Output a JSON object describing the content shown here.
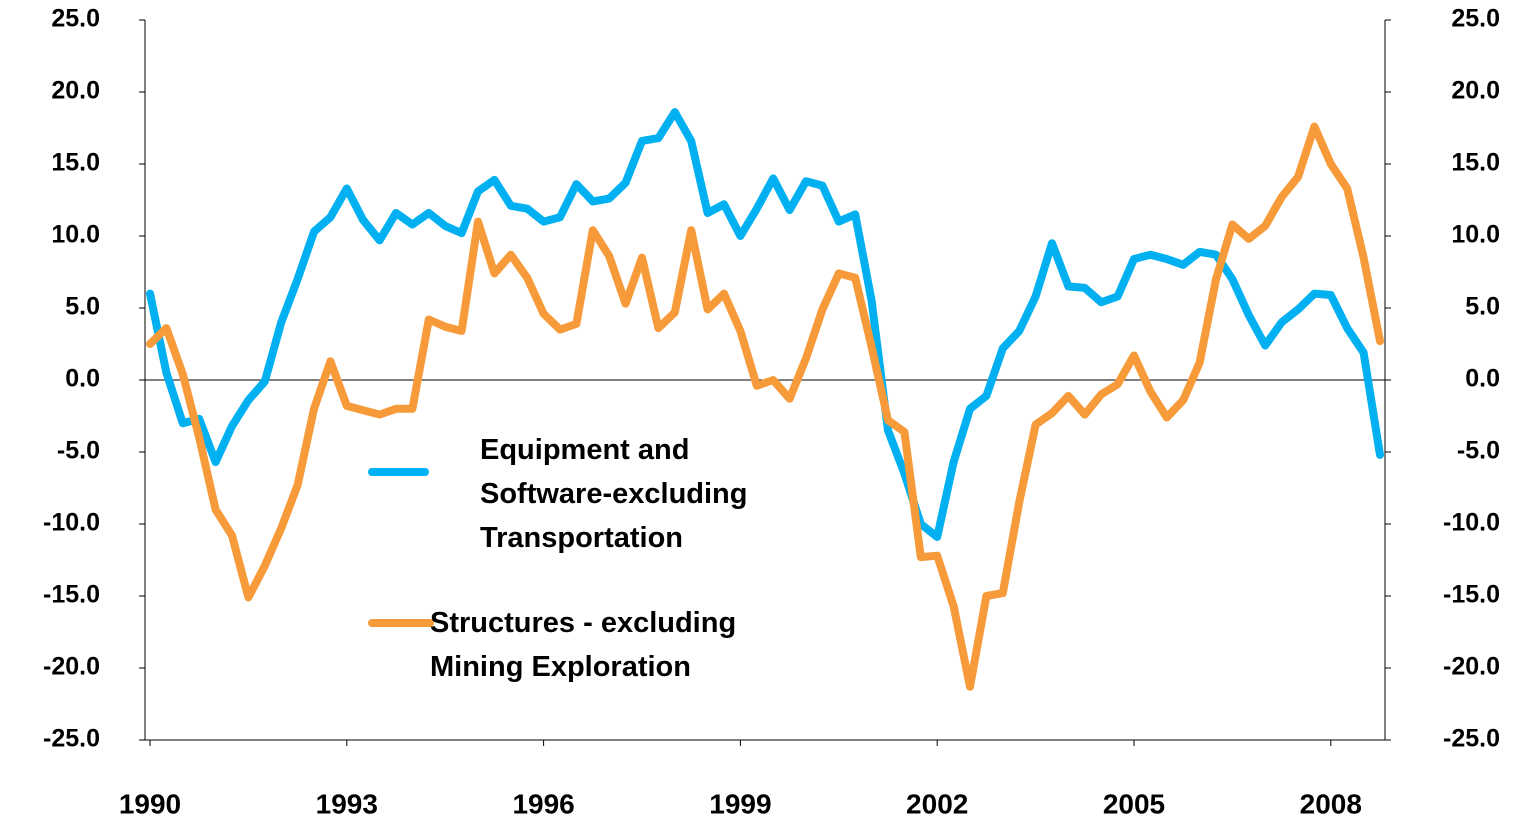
{
  "chart_data": {
    "type": "line",
    "categories": [
      "1990",
      null,
      null,
      null,
      null,
      null,
      null,
      null,
      null,
      null,
      null,
      null,
      "1993",
      null,
      null,
      null,
      null,
      null,
      null,
      null,
      null,
      null,
      null,
      null,
      "1996",
      null,
      null,
      null,
      null,
      null,
      null,
      null,
      null,
      null,
      null,
      null,
      "1999",
      null,
      null,
      null,
      null,
      null,
      null,
      null,
      null,
      null,
      null,
      null,
      "2002",
      null,
      null,
      null,
      null,
      null,
      null,
      null,
      null,
      null,
      null,
      null,
      "2005",
      null,
      null,
      null,
      null,
      null,
      null,
      null,
      null,
      null,
      null,
      null,
      "2008",
      null,
      null,
      null
    ],
    "series": [
      {
        "name": "Equipment and Software-excluding Transportation",
        "color": "#00b0f0",
        "values": [
          6.0,
          0.5,
          -3.0,
          -2.7,
          -5.7,
          -3.2,
          -1.4,
          -0.1,
          4.0,
          7.0,
          10.3,
          11.3,
          13.3,
          11.1,
          9.7,
          11.6,
          10.8,
          11.6,
          10.7,
          10.2,
          13.1,
          13.9,
          12.1,
          11.9,
          11.0,
          11.3,
          13.6,
          12.4,
          12.6,
          13.7,
          16.6,
          16.8,
          18.6,
          16.6,
          11.6,
          12.2,
          10.0,
          11.9,
          14.0,
          11.8,
          13.8,
          13.5,
          11.0,
          11.5,
          5.5,
          -3.5,
          -6.5,
          -10.0,
          -10.9,
          -5.7,
          -2.0,
          -1.1,
          2.2,
          3.4,
          5.8,
          9.5,
          6.5,
          6.4,
          5.4,
          5.8,
          8.4,
          8.7,
          8.4,
          8.0,
          8.9,
          8.7,
          7.0,
          4.5,
          2.4,
          4.0,
          4.9,
          6.0,
          5.9,
          3.6,
          1.9,
          -5.2
        ]
      },
      {
        "name": "Structures - excluding Mining Exploration",
        "color": "#f79a3a",
        "values": [
          2.5,
          3.6,
          0.4,
          -4.0,
          -9.0,
          -10.8,
          -15.1,
          -12.9,
          -10.3,
          -7.3,
          -2.0,
          1.3,
          -1.8,
          -2.1,
          -2.4,
          -2.0,
          -2.0,
          4.2,
          3.7,
          3.4,
          11.0,
          7.4,
          8.7,
          7.1,
          4.6,
          3.5,
          3.9,
          10.4,
          8.6,
          5.3,
          8.5,
          3.6,
          4.7,
          10.4,
          4.9,
          6.0,
          3.4,
          -0.4,
          0.0,
          -1.3,
          1.5,
          4.9,
          7.4,
          7.1,
          2.3,
          -2.8,
          -3.6,
          -12.3,
          -12.2,
          -15.7,
          -21.3,
          -15.0,
          -14.8,
          -8.5,
          -3.1,
          -2.3,
          -1.1,
          -2.4,
          -1.0,
          -0.3,
          1.7,
          -0.8,
          -2.6,
          -1.4,
          1.2,
          7.0,
          10.8,
          9.8,
          10.7,
          12.7,
          14.1,
          17.6,
          15.0,
          13.3,
          8.5,
          2.7
        ]
      }
    ],
    "ylim": [
      -25,
      25
    ],
    "yticks": [
      {
        "value": -25,
        "label": "-25.0"
      },
      {
        "value": -20,
        "label": "-20.0"
      },
      {
        "value": -15,
        "label": "-15.0"
      },
      {
        "value": -10,
        "label": "-10.0"
      },
      {
        "value": -5,
        "label": "-5.0"
      },
      {
        "value": 0,
        "label": "0.0"
      },
      {
        "value": 5,
        "label": "5.0"
      },
      {
        "value": 10,
        "label": "10.0"
      },
      {
        "value": 15,
        "label": "15.0"
      },
      {
        "value": 20,
        "label": "20.0"
      },
      {
        "value": 25,
        "label": "25.0"
      }
    ],
    "y2lim": [
      -25,
      25
    ],
    "y2ticks": [
      {
        "value": -25,
        "label": "-25.0"
      },
      {
        "value": -20,
        "label": "-20.0"
      },
      {
        "value": -15,
        "label": "-15.0"
      },
      {
        "value": -10,
        "label": "-10.0"
      },
      {
        "value": -5,
        "label": "-5.0"
      },
      {
        "value": 0,
        "label": "0.0"
      },
      {
        "value": 5,
        "label": "5.0"
      },
      {
        "value": 10,
        "label": "10.0"
      },
      {
        "value": 15,
        "label": "15.0"
      },
      {
        "value": 20,
        "label": "20.0"
      },
      {
        "value": 25,
        "label": "25.0"
      }
    ]
  }
}
